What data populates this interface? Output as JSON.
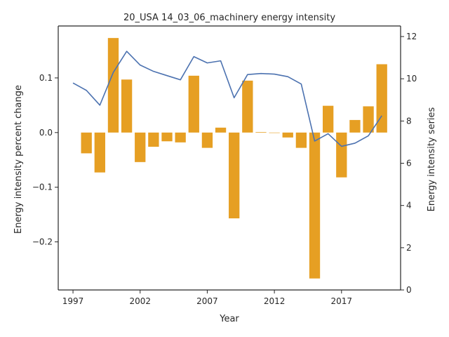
{
  "chart_data": {
    "type": "bar+line",
    "title": "20_USA 14_03_06_machinery energy intensity",
    "xlabel": "Year",
    "ylabel_left": "Energy intensity percent change",
    "ylabel_right": "Energy intensity series",
    "x_ticks": [
      1997,
      2002,
      2007,
      2012,
      2017
    ],
    "y_left_ticks": [
      -0.2,
      -0.1,
      0.0,
      0.1
    ],
    "y_left_tick_labels": [
      "−0.2",
      "−0.1",
      "0.0",
      "0.1"
    ],
    "y_left_range": [
      -0.288,
      0.195
    ],
    "y_right_ticks": [
      0,
      2,
      4,
      6,
      8,
      10,
      12
    ],
    "y_right_range": [
      0,
      12.5
    ],
    "x_range": [
      1995.9,
      2021.4
    ],
    "colors": {
      "bar": "#e69f23",
      "line": "#4c72b0",
      "axis": "#262626"
    },
    "grid": false,
    "bars": {
      "x": [
        1998,
        1999,
        2000,
        2001,
        2002,
        2003,
        2004,
        2005,
        2006,
        2007,
        2008,
        2009,
        2010,
        2011,
        2012,
        2013,
        2014,
        2015,
        2016,
        2017,
        2018,
        2019,
        2020
      ],
      "values": [
        -0.038,
        -0.073,
        0.173,
        0.097,
        -0.054,
        -0.026,
        -0.016,
        -0.018,
        0.104,
        -0.028,
        0.009,
        -0.157,
        0.095,
        0.001,
        0.0,
        -0.009,
        -0.028,
        -0.267,
        0.049,
        -0.082,
        0.023,
        0.048,
        0.125
      ]
    },
    "line": {
      "x": [
        1997,
        1998,
        1999,
        2000,
        2001,
        2002,
        2003,
        2004,
        2005,
        2006,
        2007,
        2008,
        2009,
        2010,
        2011,
        2012,
        2013,
        2014,
        2015,
        2016,
        2017,
        2018,
        2019,
        2020
      ],
      "values": [
        9.8,
        9.45,
        8.75,
        10.3,
        11.3,
        10.65,
        10.35,
        10.15,
        9.95,
        11.05,
        10.75,
        10.85,
        9.1,
        10.2,
        10.25,
        10.22,
        10.1,
        9.75,
        7.05,
        7.4,
        6.8,
        6.95,
        7.3,
        8.25
      ]
    }
  }
}
